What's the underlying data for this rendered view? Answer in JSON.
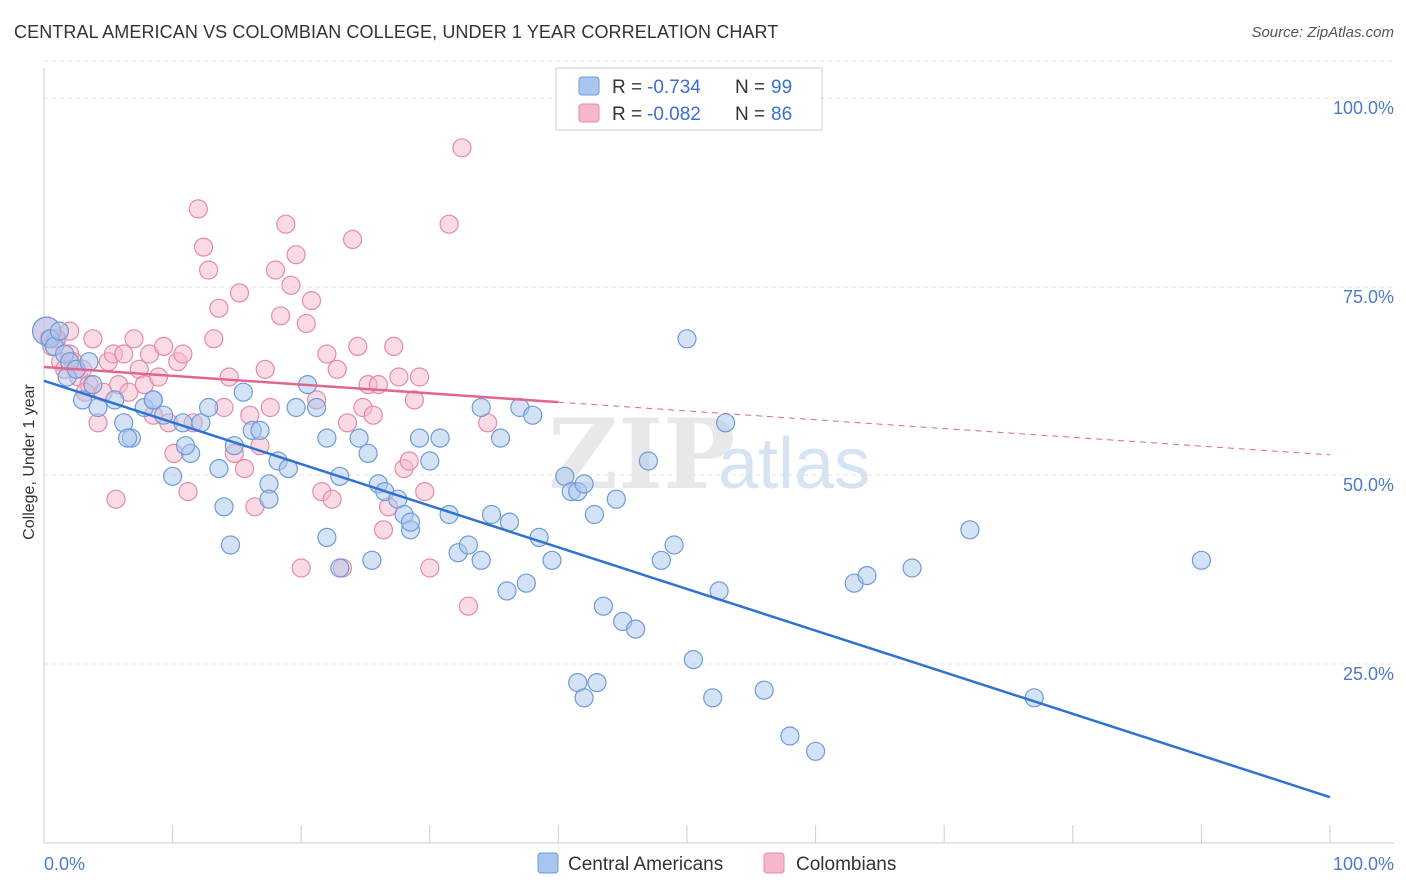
{
  "title": "CENTRAL AMERICAN VS COLOMBIAN COLLEGE, UNDER 1 YEAR CORRELATION CHART",
  "source": "Source: ZipAtlas.com",
  "watermark": {
    "zip": "ZIP",
    "atlas": "atlas"
  },
  "colors": {
    "blue_fill": "#a9c6ee",
    "blue_stroke": "#6f9ad8",
    "blue_line": "#2f73d0",
    "pink_fill": "#f5b8cb",
    "pink_stroke": "#e58aa8",
    "pink_line": "#e0668f",
    "grid": "#e3e3e3",
    "tick_text": "#4a7cc7"
  },
  "legend": {
    "rows": [
      {
        "r_label": "R =",
        "r_value": "-0.734",
        "n_label": "N =",
        "n_value": "99"
      },
      {
        "r_label": "R =",
        "r_value": "-0.082",
        "n_label": "N =",
        "n_value": "86"
      }
    ]
  },
  "chart_data": {
    "type": "scatter",
    "title": "CENTRAL AMERICAN VS COLOMBIAN COLLEGE, UNDER 1 YEAR CORRELATION CHART",
    "xlabel": "",
    "ylabel": "College, Under 1 year",
    "xlim": [
      0,
      100
    ],
    "ylim": [
      0,
      100
    ],
    "x_tick_labels": [
      "0.0%",
      "100.0%"
    ],
    "y_ticks": [
      25,
      50,
      75,
      100
    ],
    "y_tick_labels": [
      "25.0%",
      "50.0%",
      "75.0%",
      "100.0%"
    ],
    "grid": true,
    "legend_position": "top-center",
    "series": [
      {
        "name": "Central Americans",
        "r": -0.734,
        "n": 99,
        "trend": {
          "x": [
            0,
            100
          ],
          "y": [
            60.5,
            6.0
          ],
          "dashed_from": null
        },
        "points": [
          [
            0.2,
            67
          ],
          [
            0.5,
            66
          ],
          [
            0.8,
            65
          ],
          [
            1.2,
            67
          ],
          [
            1.6,
            64
          ],
          [
            2.0,
            63
          ],
          [
            1.8,
            61
          ],
          [
            3.0,
            58
          ],
          [
            3.8,
            60
          ],
          [
            4.2,
            57
          ],
          [
            5.5,
            58
          ],
          [
            6.2,
            55
          ],
          [
            6.8,
            53
          ],
          [
            7.8,
            57
          ],
          [
            8.5,
            58
          ],
          [
            9.3,
            56
          ],
          [
            10.8,
            55
          ],
          [
            11.4,
            51
          ],
          [
            12.2,
            55
          ],
          [
            12.8,
            57
          ],
          [
            13.6,
            49
          ],
          [
            14.8,
            52
          ],
          [
            15.5,
            59
          ],
          [
            16.2,
            54
          ],
          [
            16.8,
            54
          ],
          [
            17.5,
            47
          ],
          [
            18.2,
            50
          ],
          [
            19.0,
            49
          ],
          [
            19.6,
            57
          ],
          [
            20.5,
            60
          ],
          [
            21.2,
            57
          ],
          [
            22.0,
            53
          ],
          [
            23.0,
            48
          ],
          [
            24.5,
            53
          ],
          [
            25.2,
            51
          ],
          [
            26.0,
            47
          ],
          [
            26.5,
            46
          ],
          [
            27.5,
            45
          ],
          [
            28.0,
            43
          ],
          [
            28.5,
            41
          ],
          [
            29.2,
            53
          ],
          [
            30.0,
            50
          ],
          [
            30.8,
            53
          ],
          [
            31.5,
            43
          ],
          [
            32.2,
            38
          ],
          [
            33.0,
            39
          ],
          [
            34.0,
            57
          ],
          [
            34.8,
            43
          ],
          [
            35.5,
            53
          ],
          [
            36.2,
            42
          ],
          [
            37.0,
            57
          ],
          [
            38.0,
            56
          ],
          [
            38.5,
            40
          ],
          [
            39.5,
            37
          ],
          [
            40.5,
            48
          ],
          [
            41.0,
            46
          ],
          [
            41.5,
            46
          ],
          [
            42.0,
            47
          ],
          [
            42.8,
            43
          ],
          [
            43.5,
            31
          ],
          [
            44.5,
            45
          ],
          [
            45.0,
            29
          ],
          [
            46.0,
            28
          ],
          [
            47.0,
            50
          ],
          [
            48.0,
            37
          ],
          [
            49.0,
            39
          ],
          [
            50.0,
            66
          ],
          [
            50.5,
            24
          ],
          [
            52.0,
            19
          ],
          [
            53.0,
            55
          ],
          [
            34.0,
            37
          ],
          [
            37.5,
            34
          ],
          [
            36.0,
            33
          ],
          [
            28.5,
            42
          ],
          [
            23.0,
            36
          ],
          [
            22.0,
            40
          ],
          [
            25.5,
            37
          ],
          [
            14.5,
            39
          ],
          [
            10.0,
            48
          ],
          [
            2.5,
            62
          ],
          [
            3.5,
            63
          ],
          [
            6.5,
            53
          ],
          [
            8.5,
            58
          ],
          [
            11.0,
            52
          ],
          [
            14.0,
            44
          ],
          [
            17.5,
            45
          ],
          [
            41.5,
            21
          ],
          [
            42.0,
            19
          ],
          [
            43.0,
            21
          ],
          [
            52.5,
            33
          ],
          [
            56.0,
            20
          ],
          [
            58.0,
            14
          ],
          [
            60.0,
            12
          ],
          [
            63.0,
            34
          ],
          [
            64.0,
            35
          ],
          [
            67.5,
            36
          ],
          [
            72.0,
            41
          ],
          [
            77.0,
            19
          ],
          [
            90.0,
            37
          ]
        ]
      },
      {
        "name": "Colombians",
        "r": -0.082,
        "n": 86,
        "trend": {
          "x": [
            0,
            100
          ],
          "y": [
            62.3,
            50.8
          ],
          "dashed_from": 40
        },
        "points": [
          [
            0.2,
            67
          ],
          [
            0.4,
            66
          ],
          [
            0.6,
            65
          ],
          [
            0.9,
            66
          ],
          [
            1.3,
            63
          ],
          [
            1.6,
            62
          ],
          [
            2.0,
            64
          ],
          [
            2.3,
            63
          ],
          [
            2.7,
            61
          ],
          [
            3.0,
            62
          ],
          [
            3.5,
            60
          ],
          [
            3.8,
            66
          ],
          [
            4.2,
            55
          ],
          [
            4.6,
            59
          ],
          [
            5.0,
            63
          ],
          [
            5.4,
            64
          ],
          [
            5.8,
            60
          ],
          [
            6.2,
            64
          ],
          [
            6.6,
            59
          ],
          [
            7.0,
            66
          ],
          [
            7.4,
            62
          ],
          [
            7.8,
            60
          ],
          [
            8.2,
            64
          ],
          [
            8.5,
            56
          ],
          [
            8.9,
            61
          ],
          [
            9.3,
            65
          ],
          [
            9.7,
            55
          ],
          [
            10.1,
            51
          ],
          [
            10.4,
            63
          ],
          [
            10.8,
            64
          ],
          [
            11.2,
            46
          ],
          [
            11.6,
            55
          ],
          [
            12.0,
            83
          ],
          [
            12.4,
            78
          ],
          [
            12.8,
            75
          ],
          [
            13.2,
            66
          ],
          [
            13.6,
            70
          ],
          [
            14.0,
            57
          ],
          [
            14.4,
            61
          ],
          [
            14.8,
            51
          ],
          [
            15.2,
            72
          ],
          [
            15.6,
            49
          ],
          [
            16.0,
            56
          ],
          [
            16.4,
            44
          ],
          [
            16.8,
            52
          ],
          [
            17.2,
            62
          ],
          [
            17.6,
            57
          ],
          [
            18.0,
            75
          ],
          [
            18.4,
            69
          ],
          [
            18.8,
            81
          ],
          [
            19.2,
            73
          ],
          [
            19.6,
            77
          ],
          [
            20.0,
            36
          ],
          [
            20.4,
            68
          ],
          [
            20.8,
            71
          ],
          [
            21.2,
            58
          ],
          [
            21.6,
            46
          ],
          [
            22.0,
            64
          ],
          [
            22.4,
            45
          ],
          [
            22.8,
            62
          ],
          [
            23.2,
            36
          ],
          [
            23.6,
            55
          ],
          [
            24.0,
            79
          ],
          [
            24.4,
            65
          ],
          [
            24.8,
            57
          ],
          [
            25.2,
            60
          ],
          [
            25.6,
            56
          ],
          [
            26.0,
            60
          ],
          [
            26.4,
            41
          ],
          [
            26.8,
            44
          ],
          [
            27.2,
            65
          ],
          [
            27.6,
            61
          ],
          [
            28.0,
            49
          ],
          [
            28.4,
            50
          ],
          [
            28.8,
            58
          ],
          [
            29.2,
            61
          ],
          [
            29.6,
            46
          ],
          [
            30.0,
            36
          ],
          [
            31.5,
            81
          ],
          [
            32.5,
            91
          ],
          [
            33.0,
            31
          ],
          [
            34.5,
            55
          ],
          [
            2.0,
            67
          ],
          [
            3.2,
            59
          ],
          [
            1.0,
            66
          ],
          [
            5.6,
            45
          ]
        ]
      }
    ]
  },
  "bottom_legend": [
    {
      "label": "Central Americans"
    },
    {
      "label": "Colombians"
    }
  ]
}
